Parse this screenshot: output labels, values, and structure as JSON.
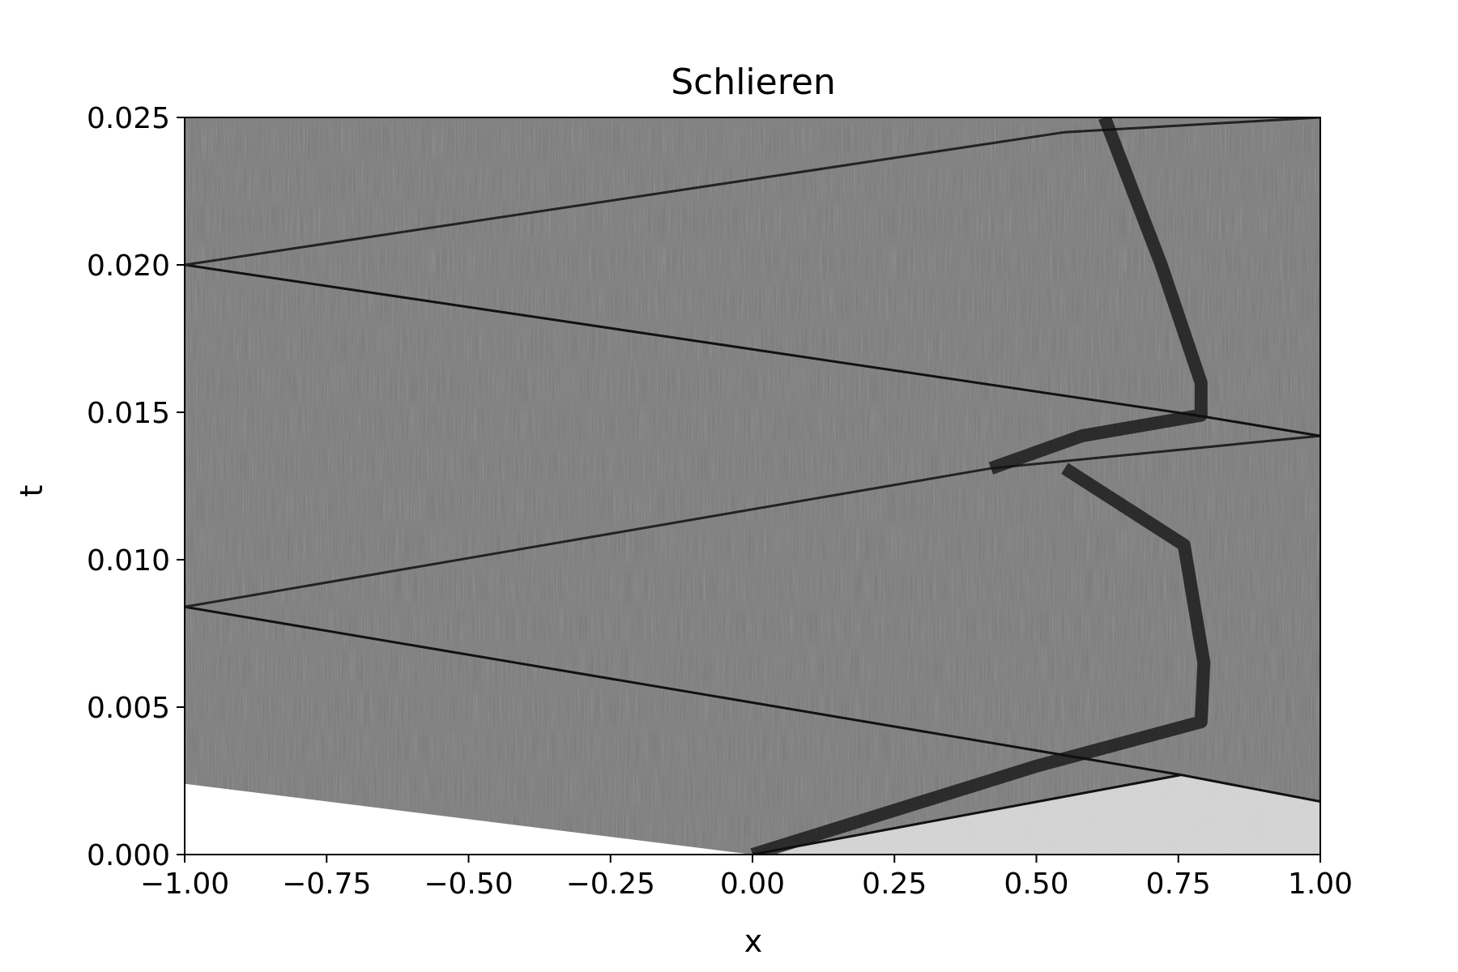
{
  "chart_data": {
    "type": "heatmap",
    "title": "Schlieren",
    "xlabel": "x",
    "ylabel": "t",
    "xlim": [
      -1.0,
      1.0
    ],
    "ylim": [
      0.0,
      0.025
    ],
    "xticks": [
      -1.0,
      -0.75,
      -0.5,
      -0.25,
      0.0,
      0.25,
      0.5,
      0.75,
      1.0
    ],
    "xtick_labels": [
      "−1.00",
      "−0.75",
      "−0.50",
      "−0.25",
      "0.00",
      "0.25",
      "0.50",
      "0.75",
      "1.00"
    ],
    "yticks": [
      0.0,
      0.005,
      0.01,
      0.015,
      0.02,
      0.025
    ],
    "ytick_labels": [
      "0.000",
      "0.005",
      "0.010",
      "0.015",
      "0.020",
      "0.025"
    ],
    "colormap": "grayscale",
    "grid": false,
    "background_gray": "#7a7a7a",
    "features": [
      {
        "kind": "rarefaction_fan",
        "x": [
          -1.0,
          0.0,
          -1.0
        ],
        "t": [
          0.0024,
          0.0,
          0.0
        ],
        "color": "#ffffff"
      },
      {
        "kind": "shock",
        "x": [
          0.0,
          0.755,
          1.0
        ],
        "t": [
          0.0,
          0.0027,
          0.0018
        ],
        "color": "#111111"
      },
      {
        "kind": "bright_region",
        "x": [
          0.0,
          0.755,
          1.0,
          1.0
        ],
        "t": [
          0.0,
          0.0027,
          0.0018,
          0.0
        ],
        "color": "#e2e2e2"
      },
      {
        "kind": "reflected_shock",
        "x": [
          0.755,
          -1.0
        ],
        "t": [
          0.0027,
          0.0084
        ],
        "color": "#111111"
      },
      {
        "kind": "shock",
        "x": [
          -1.0,
          0.42,
          1.0
        ],
        "t": [
          0.0084,
          0.0131,
          0.0142
        ],
        "color": "#222222"
      },
      {
        "kind": "reflected_shock",
        "x": [
          1.0,
          0.78,
          -1.0
        ],
        "t": [
          0.0142,
          0.0149,
          0.02
        ],
        "color": "#111111"
      },
      {
        "kind": "shock",
        "x": [
          -1.0,
          0.55,
          1.0
        ],
        "t": [
          0.02,
          0.0245,
          0.025
        ],
        "color": "#222222"
      },
      {
        "kind": "contact",
        "x": [
          0.0,
          0.5,
          0.79,
          0.795,
          0.76,
          0.55
        ],
        "t": [
          0.0,
          0.003,
          0.0045,
          0.0065,
          0.0105,
          0.0131
        ],
        "color": "#0f0f0f"
      },
      {
        "kind": "contact",
        "x": [
          0.42,
          0.58,
          0.79,
          0.79,
          0.72,
          0.62
        ],
        "t": [
          0.0131,
          0.0142,
          0.0149,
          0.016,
          0.02,
          0.025
        ],
        "color": "#0f0f0f"
      }
    ]
  }
}
